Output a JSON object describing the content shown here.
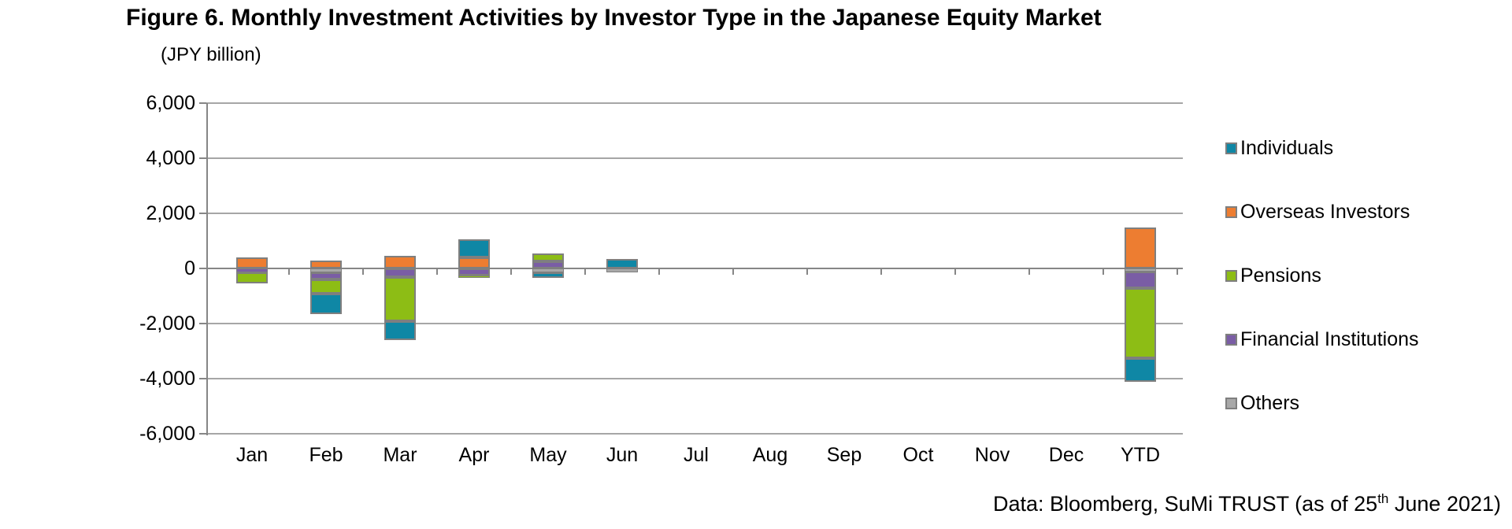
{
  "title": "Figure 6. Monthly Investment Activities by Investor Type in the Japanese Equity Market",
  "unit_label": "(JPY billion)",
  "footer": {
    "prefix": "Data: Bloomberg, SuMi TRUST (as of 25",
    "superscript": "th",
    "suffix": " June 2021)"
  },
  "colors": {
    "individuals": "#0f87a5",
    "overseas_investors": "#ed7d31",
    "pensions": "#8dbd15",
    "financial_institutions": "#7a5da5",
    "others": "#a8a8a8",
    "bar_border": "#7f7f7f",
    "gridline": "#a6a6a6",
    "axis": "#868686"
  },
  "chart_data": {
    "type": "bar",
    "stacked": true,
    "title": "Figure 6. Monthly Investment Activities by Investor Type in the Japanese Equity Market",
    "ylabel": "(JPY billion)",
    "xlabel": "",
    "categories": [
      "Jan",
      "Feb",
      "Mar",
      "Apr",
      "May",
      "Jun",
      "Jul",
      "Aug",
      "Sep",
      "Oct",
      "Nov",
      "Dec",
      "YTD"
    ],
    "series": [
      {
        "name": "Individuals",
        "color": "#0f87a5",
        "values": [
          0,
          -750,
          -700,
          650,
          -200,
          350,
          0,
          0,
          0,
          0,
          0,
          0,
          -850
        ]
      },
      {
        "name": "Overseas Investors",
        "color": "#ed7d31",
        "values": [
          400,
          300,
          450,
          400,
          0,
          0,
          0,
          0,
          0,
          0,
          0,
          0,
          1500
        ]
      },
      {
        "name": "Pensions",
        "color": "#8dbd15",
        "values": [
          -400,
          -500,
          -1600,
          -100,
          300,
          0,
          0,
          0,
          0,
          0,
          0,
          0,
          -2550
        ]
      },
      {
        "name": "Financial Institutions",
        "color": "#7a5da5",
        "values": [
          -150,
          -250,
          -300,
          -250,
          250,
          0,
          0,
          0,
          0,
          0,
          0,
          0,
          -600
        ]
      },
      {
        "name": "Others",
        "color": "#a8a8a8",
        "values": [
          0,
          -150,
          0,
          0,
          -150,
          -150,
          0,
          0,
          0,
          0,
          0,
          0,
          -100
        ]
      }
    ],
    "stack_order_from_axis": [
      "Others",
      "Financial Institutions",
      "Pensions",
      "Overseas Investors",
      "Individuals"
    ],
    "ylim": [
      -6000,
      6000
    ],
    "ytick_step": 2000,
    "ytick_labels": [
      "6,000",
      "4,000",
      "2,000",
      "0",
      "-2,000",
      "-4,000",
      "-6,000"
    ],
    "grid": true,
    "legend_position": "right"
  }
}
